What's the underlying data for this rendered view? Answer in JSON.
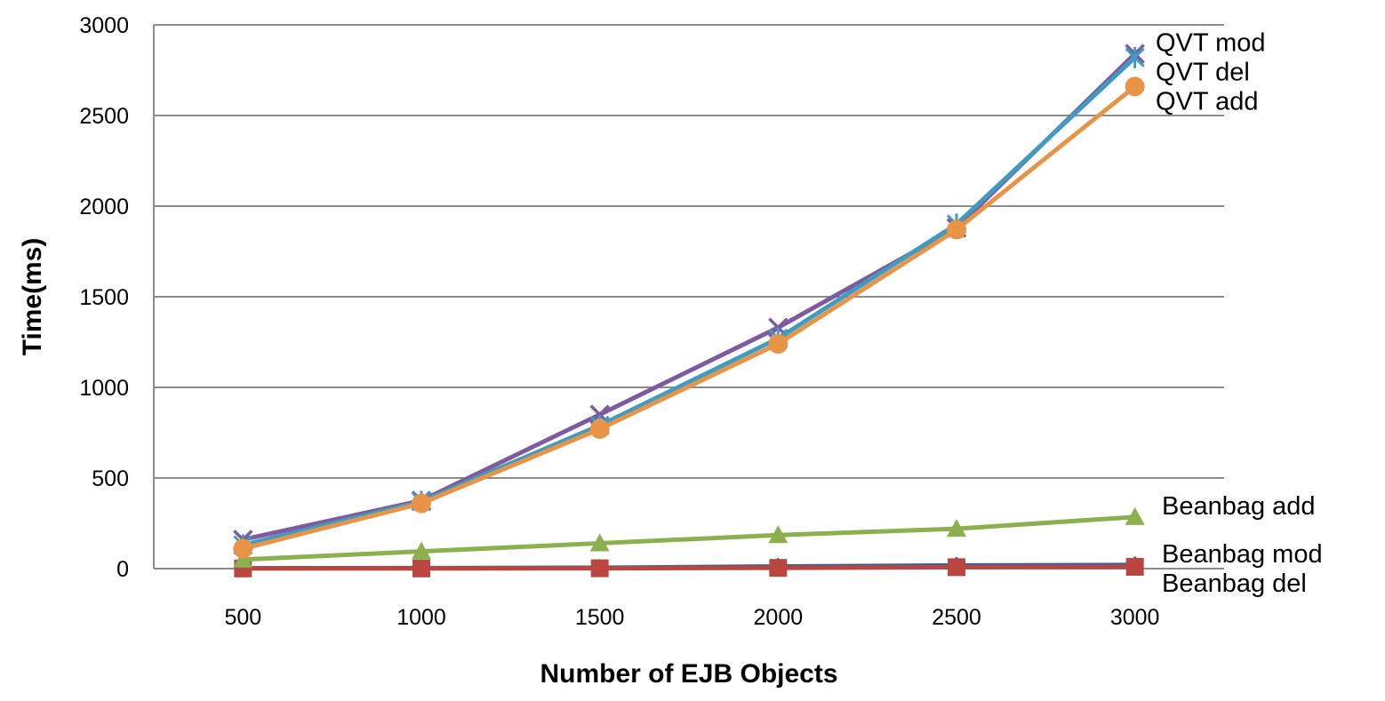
{
  "chart_data": {
    "type": "line",
    "title": "",
    "xlabel": "Number of EJB Objects",
    "ylabel": "Time(ms)",
    "x": [
      500,
      1000,
      1500,
      2000,
      2500,
      3000
    ],
    "ylim": [
      0,
      3000
    ],
    "yticks": [
      0,
      500,
      1000,
      1500,
      2000,
      2500,
      3000
    ],
    "grid": "horizontal",
    "legend": "labels at right end of lines",
    "series": [
      {
        "name": "QVT mod",
        "values": [
          160,
          375,
          850,
          1330,
          1880,
          2840
        ],
        "color": "#7D5B9E",
        "marker": "x"
      },
      {
        "name": "QVT del",
        "values": [
          130,
          370,
          790,
          1270,
          1900,
          2820
        ],
        "color": "#3F9BBF",
        "marker": "star"
      },
      {
        "name": "QVT add",
        "values": [
          110,
          360,
          770,
          1240,
          1870,
          2660
        ],
        "color": "#E89447",
        "marker": "circle"
      },
      {
        "name": "Beanbag add",
        "values": [
          50,
          95,
          140,
          185,
          220,
          285
        ],
        "color": "#8CB04D",
        "marker": "triangle"
      },
      {
        "name": "Beanbag mod",
        "values": [
          2,
          3,
          5,
          12,
          18,
          20
        ],
        "color": "#3E5F9C",
        "marker": "diamond"
      },
      {
        "name": "Beanbag del",
        "values": [
          1,
          1,
          2,
          4,
          8,
          10
        ],
        "color": "#B9473F",
        "marker": "square"
      }
    ]
  }
}
